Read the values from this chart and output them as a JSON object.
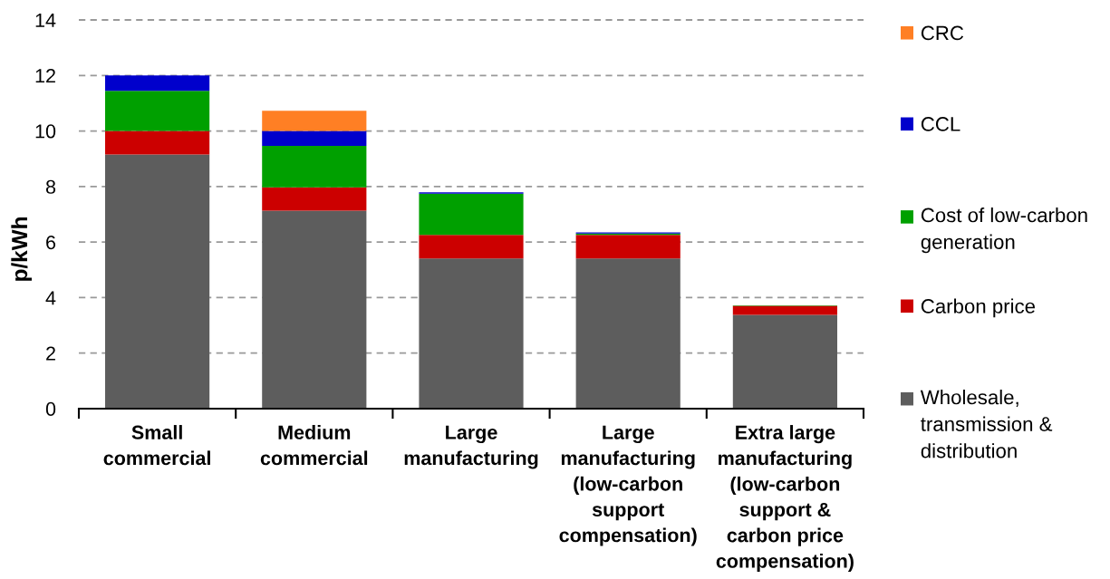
{
  "chart_data": {
    "type": "bar",
    "stacked": true,
    "categories": [
      "Small\ncommercial",
      "Medium\ncommercial",
      "Large\nmanufacturing",
      "Large\nmanufacturing\n(low-carbon\nsupport\ncompensation)",
      "Extra large\nmanufacturing\n(low-carbon\nsupport &\ncarbon price\ncompensation)"
    ],
    "ylabel": "p/kWh",
    "ylim": [
      0,
      14
    ],
    "yticks": [
      0,
      2,
      4,
      6,
      8,
      10,
      12,
      14
    ],
    "grid": "y",
    "legend": "right",
    "series": [
      {
        "name": "Wholesale,\ntransmission &\ndistribution",
        "color": "#5d5d5d",
        "values": [
          9.15,
          7.13,
          5.41,
          5.41,
          3.38
        ]
      },
      {
        "name": "Carbon price",
        "color": "#cc0000",
        "values": [
          0.85,
          0.84,
          0.85,
          0.85,
          0.32
        ]
      },
      {
        "name": "Cost of low-carbon\ngeneration",
        "color": "#00a000",
        "values": [
          1.45,
          1.49,
          1.48,
          0.05,
          0.02
        ]
      },
      {
        "name": "CCL",
        "color": "#0000cc",
        "values": [
          0.55,
          0.54,
          0.05,
          0.04,
          null
        ]
      },
      {
        "name": "CRC",
        "color": "#ff7f24",
        "values": [
          null,
          0.73,
          null,
          null,
          null
        ]
      }
    ]
  }
}
